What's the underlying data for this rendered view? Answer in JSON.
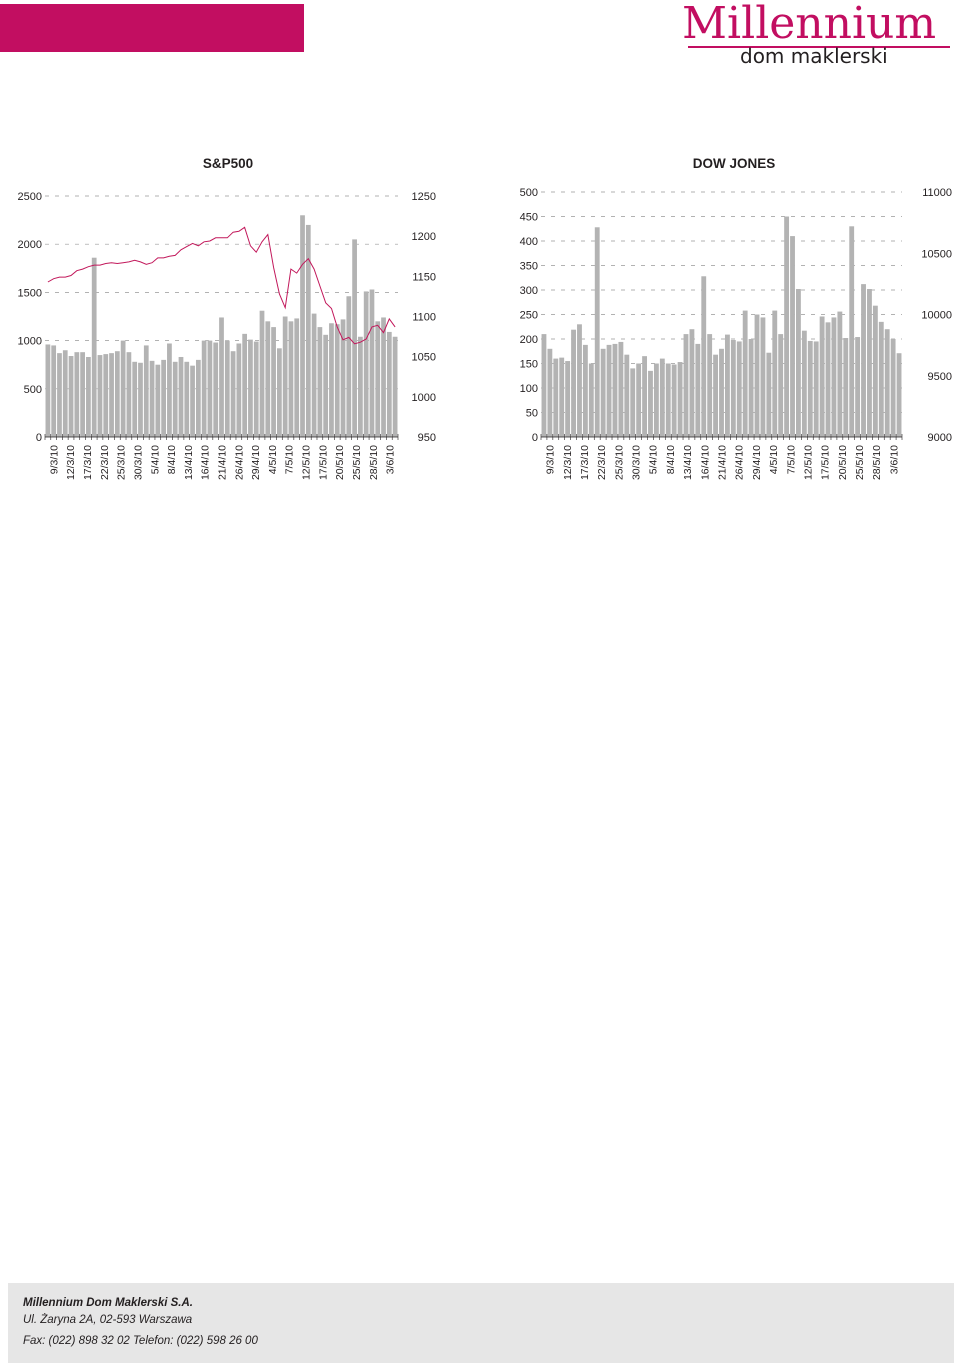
{
  "header": {
    "brand": "Millennium",
    "sub": "dom maklerski",
    "bar_color": "#c20e61"
  },
  "colors": {
    "bar": "#b3b3b3",
    "line": "#c2185b",
    "grid": "#999999",
    "axis": "#231f20"
  },
  "footer": {
    "company": "Millennium Dom Maklerski S.A.",
    "address": "Ul. Żaryna 2A, 02-593 Warszawa",
    "phones": "Fax: (022) 898 32 02  Telefon: (022) 598 26 00"
  },
  "chart_data": [
    {
      "type": "bar+line",
      "title": "S&P500",
      "left_axis": {
        "ticks": [
          0,
          500,
          1000,
          1500,
          2000,
          2500
        ],
        "range": [
          0,
          2500
        ]
      },
      "right_axis": {
        "ticks": [
          950,
          1000,
          1050,
          1100,
          1150,
          1200,
          1250
        ],
        "range": [
          950,
          1250
        ]
      },
      "x_labels": [
        "9/3/10",
        "12/3/10",
        "17/3/10",
        "22/3/10",
        "25/3/10",
        "30/3/10",
        "5/4/10",
        "8/4/10",
        "13/4/10",
        "16/4/10",
        "21/4/10",
        "26/4/10",
        "29/4/10",
        "4/5/10",
        "7/5/10",
        "12/5/10",
        "17/5/10",
        "20/5/10",
        "25/5/10",
        "28/5/10",
        "3/6/10"
      ],
      "n_days": 61,
      "bars": [
        960,
        950,
        870,
        900,
        840,
        880,
        880,
        830,
        1860,
        850,
        860,
        870,
        890,
        1000,
        880,
        780,
        770,
        950,
        790,
        750,
        800,
        970,
        780,
        830,
        780,
        740,
        800,
        1000,
        1000,
        980,
        1240,
        1000,
        890,
        970,
        1070,
        1010,
        990,
        1310,
        1200,
        1140,
        920,
        1250,
        1200,
        1230,
        2300,
        2200,
        1280,
        1140,
        1060,
        1180,
        1170,
        1220,
        1460,
        2050,
        1040,
        1510,
        1530,
        1200,
        1240,
        1090,
        1040
      ],
      "line": [
        1143,
        1147,
        1149,
        1149,
        1151,
        1157,
        1159,
        1162,
        1164,
        1164,
        1166,
        1167,
        1166,
        1167,
        1168,
        1170,
        1168,
        1165,
        1167,
        1173,
        1173,
        1175,
        1176,
        1183,
        1187,
        1191,
        1188,
        1193,
        1194,
        1198,
        1198,
        1198,
        1205,
        1206,
        1211,
        1188,
        1180,
        1193,
        1202,
        1161,
        1128,
        1111,
        1159,
        1154,
        1165,
        1172,
        1159,
        1138,
        1117,
        1110,
        1087,
        1071,
        1074,
        1066,
        1068,
        1072,
        1087,
        1089,
        1080,
        1097,
        1087
      ]
    },
    {
      "type": "bar+line",
      "title": "DOW JONES",
      "left_axis": {
        "ticks": [
          0,
          50,
          100,
          150,
          200,
          250,
          300,
          350,
          400,
          450,
          500
        ],
        "range": [
          0,
          500
        ]
      },
      "right_axis": {
        "ticks": [
          9000,
          9500,
          10000,
          10500,
          11000
        ],
        "range": [
          9000,
          11000
        ]
      },
      "x_labels": [
        "9/3/10",
        "12/3/10",
        "17/3/10",
        "22/3/10",
        "25/3/10",
        "30/3/10",
        "5/4/10",
        "8/4/10",
        "13/4/10",
        "16/4/10",
        "21/4/10",
        "26/4/10",
        "29/4/10",
        "4/5/10",
        "7/5/10",
        "12/5/10",
        "17/5/10",
        "20/5/10",
        "25/5/10",
        "28/5/10",
        "3/6/10"
      ],
      "n_days": 61,
      "bars": [
        210,
        180,
        160,
        162,
        155,
        219,
        230,
        188,
        150,
        428,
        180,
        188,
        190,
        194,
        168,
        140,
        150,
        165,
        135,
        150,
        160,
        150,
        148,
        153,
        210,
        220,
        190,
        328,
        210,
        168,
        180,
        209,
        198,
        195,
        258,
        200,
        250,
        244,
        172,
        258,
        210,
        450,
        410,
        302,
        217,
        196,
        195,
        246,
        234,
        244,
        256,
        202,
        430,
        204,
        312,
        302,
        268,
        235,
        220,
        200,
        171
      ]
    }
  ]
}
